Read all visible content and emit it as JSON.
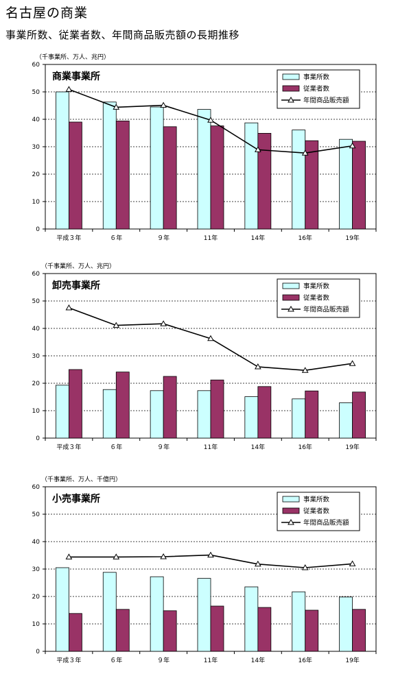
{
  "header": {
    "title": "名古屋の商業",
    "subtitle": "事業所数、従業者数、年間商品販売額の長期推移"
  },
  "colors": {
    "establishments": "#ccffff",
    "employees": "#993366",
    "sales_line": "#000000",
    "grid": "#000000"
  },
  "chart_data": [
    {
      "type": "bar",
      "title": "商業事業所",
      "unit_label": "（千事業所、万人、兆円）",
      "categories": [
        "平成３年",
        "６年",
        "９年",
        "11年",
        "14年",
        "16年",
        "19年"
      ],
      "ylim": [
        0,
        60
      ],
      "yticks": [
        0,
        10,
        20,
        30,
        40,
        50,
        60
      ],
      "grid": true,
      "legend": "top-right",
      "series": [
        {
          "name": "事業所数",
          "type": "bar",
          "values": [
            50.0,
            46.3,
            44.5,
            43.6,
            38.7,
            36.1,
            32.7
          ]
        },
        {
          "name": "従業者数",
          "type": "bar",
          "values": [
            39.0,
            39.4,
            37.3,
            37.6,
            34.9,
            32.2,
            32.0
          ]
        },
        {
          "name": "年間商品販売額",
          "type": "line",
          "values": [
            50.9,
            44.4,
            45.1,
            39.7,
            28.9,
            27.7,
            30.3
          ]
        }
      ]
    },
    {
      "type": "bar",
      "title": "卸売事業所",
      "unit_label": "（千事業所、万人、兆円）",
      "categories": [
        "平成３年",
        "６年",
        "９年",
        "11年",
        "14年",
        "16年",
        "19年"
      ],
      "ylim": [
        0,
        60
      ],
      "yticks": [
        0,
        10,
        20,
        30,
        40,
        50,
        60
      ],
      "grid": true,
      "legend": "top-right",
      "series": [
        {
          "name": "事業所数",
          "type": "bar",
          "values": [
            19.3,
            17.7,
            17.3,
            17.3,
            15.1,
            14.3,
            12.9
          ]
        },
        {
          "name": "従業者数",
          "type": "bar",
          "values": [
            25.0,
            24.1,
            22.5,
            21.2,
            18.8,
            17.2,
            16.8
          ]
        },
        {
          "name": "年間商品販売額",
          "type": "line",
          "values": [
            47.5,
            41.1,
            41.7,
            36.3,
            26.0,
            24.7,
            27.2
          ]
        }
      ]
    },
    {
      "type": "bar",
      "title": "小売事業所",
      "unit_label": "（千事業所、万人、千億円）",
      "categories": [
        "平成３年",
        "６年",
        "９年",
        "11年",
        "14年",
        "16年",
        "19年"
      ],
      "ylim": [
        0,
        60
      ],
      "yticks": [
        0,
        10,
        20,
        30,
        40,
        50,
        60
      ],
      "grid": true,
      "legend": "top-right",
      "series": [
        {
          "name": "事業所数",
          "type": "bar",
          "values": [
            30.5,
            28.8,
            27.2,
            26.6,
            23.5,
            21.7,
            19.8
          ]
        },
        {
          "name": "従業者数",
          "type": "bar",
          "values": [
            13.8,
            15.3,
            14.8,
            16.5,
            16.0,
            15.0,
            15.3
          ]
        },
        {
          "name": "年間商品販売額",
          "type": "line",
          "values": [
            34.4,
            34.4,
            34.5,
            35.1,
            31.8,
            30.5,
            31.9
          ]
        }
      ]
    }
  ]
}
